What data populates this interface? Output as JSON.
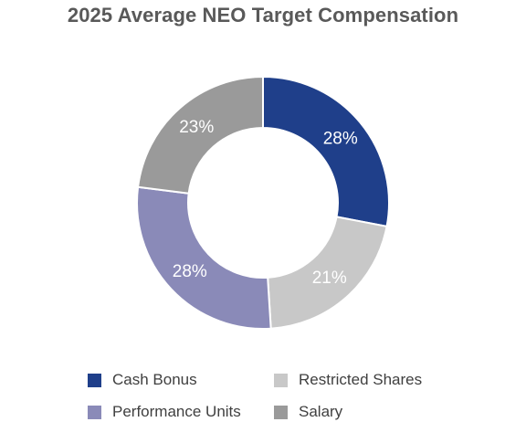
{
  "chart_data": {
    "type": "pie",
    "variant": "donut",
    "title": "2025 Average NEO Target Compensation",
    "slices": [
      {
        "label": "Cash Bonus",
        "value": 28,
        "display": "28%",
        "color": "#1F3F8A"
      },
      {
        "label": "Restricted Shares",
        "value": 21,
        "display": "21%",
        "color": "#C8C8C8"
      },
      {
        "label": "Performance Units",
        "value": 28,
        "display": "28%",
        "color": "#8A8AB8"
      },
      {
        "label": "Salary",
        "value": 23,
        "display": "23%",
        "color": "#9A9A9A"
      }
    ],
    "legend": {
      "placement": "bottom",
      "items": [
        {
          "label": "Cash Bonus",
          "color": "#1F3F8A"
        },
        {
          "label": "Restricted Shares",
          "color": "#C8C8C8"
        },
        {
          "label": "Performance Units",
          "color": "#8A8AB8"
        },
        {
          "label": "Salary",
          "color": "#9A9A9A"
        }
      ]
    }
  }
}
